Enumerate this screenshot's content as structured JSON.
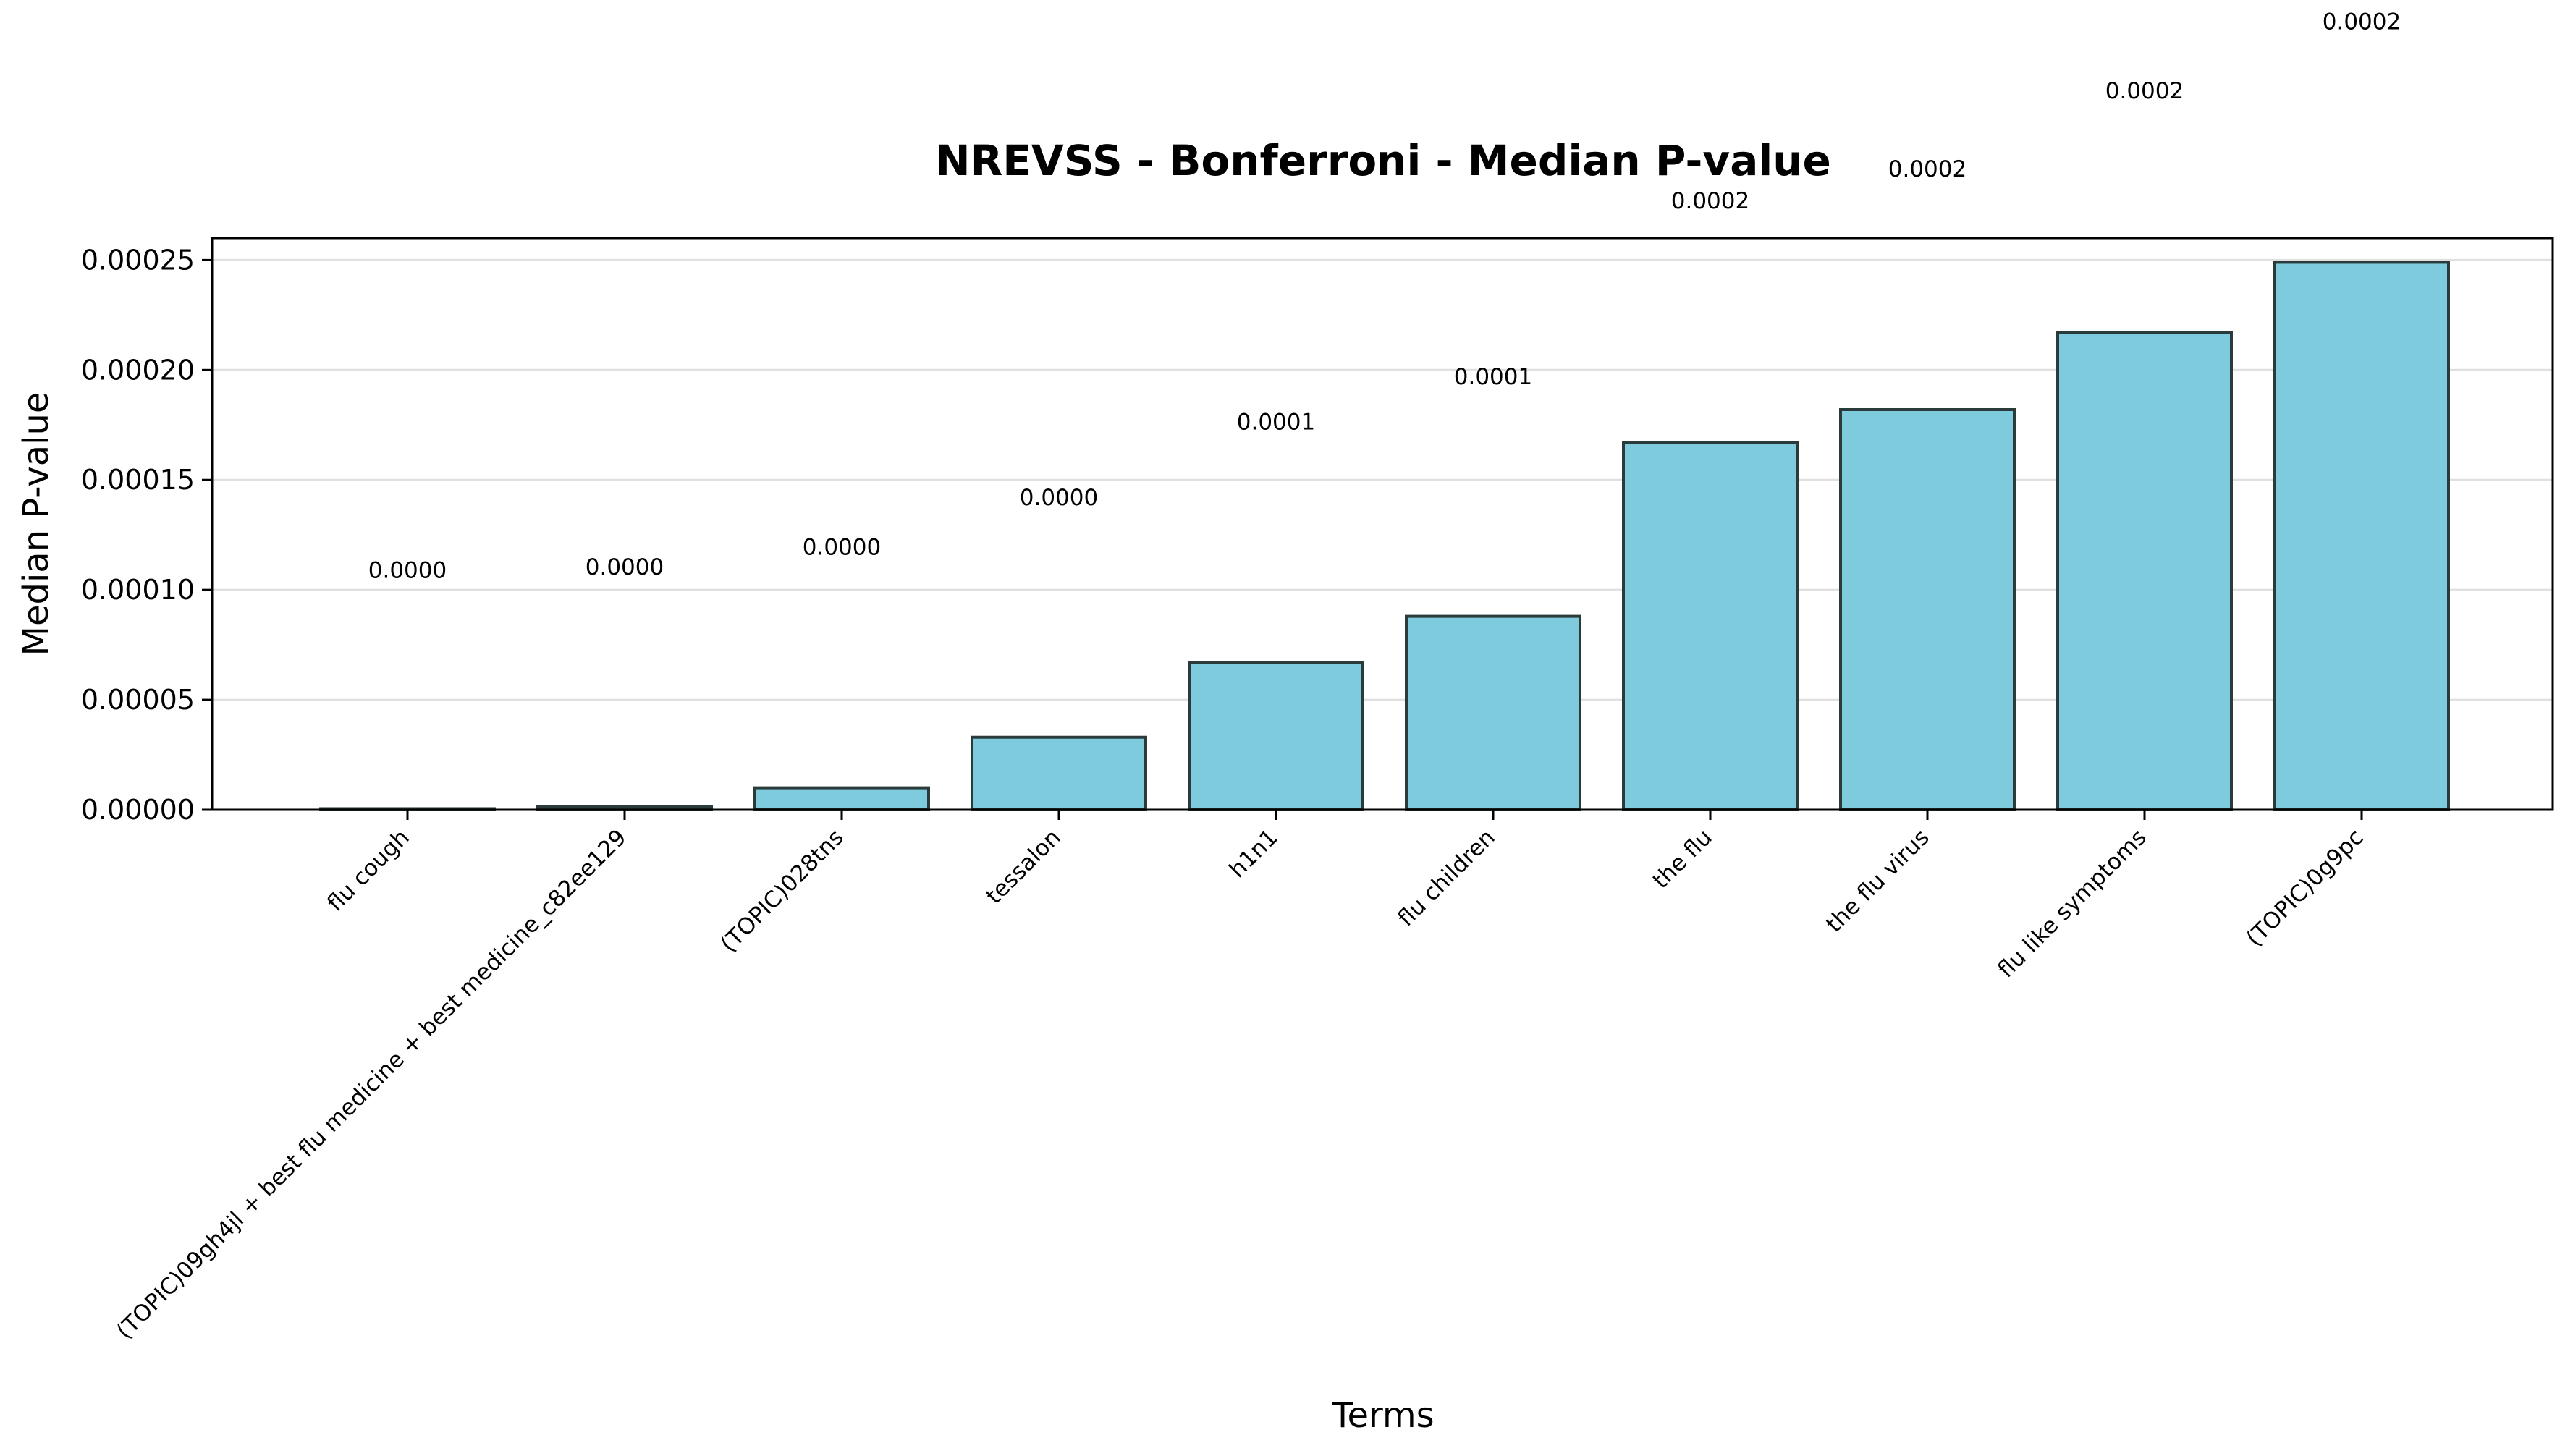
{
  "chart_data": {
    "type": "bar",
    "title": "NREVSS - Bonferroni - Median P-value",
    "xlabel": "Terms",
    "ylabel": "Median P-value",
    "ylim": [
      0,
      0.00026
    ],
    "yticks": [
      0,
      5e-05,
      0.0001,
      0.00015,
      0.0002,
      0.00025
    ],
    "ytick_labels": [
      "0.00000",
      "0.00005",
      "0.00010",
      "0.00015",
      "0.00020",
      "0.00025"
    ],
    "grid": "y",
    "bar_color": "#7ecbdd",
    "edge_color": "#2b3a3a",
    "categories": [
      "flu cough",
      "(TOPIC)09gh4jl + best flu medicine + best medicine_c82ee129",
      "(TOPIC)028tns",
      "tessalon",
      "h1n1",
      "flu children",
      "the flu",
      "the flu virus",
      "flu like symptoms",
      "(TOPIC)0g9pc"
    ],
    "values": [
      5e-07,
      1.5e-06,
      1e-05,
      3.3e-05,
      6.7e-05,
      8.8e-05,
      0.000167,
      0.000182,
      0.000217,
      0.000249
    ],
    "data_labels": [
      "0.0000",
      "0.0000",
      "0.0000",
      "0.0000",
      "0.0001",
      "0.0001",
      "0.0002",
      "0.0002",
      "0.0002",
      "0.0002"
    ],
    "label_values": [
      0.0001055,
      0.000107,
      0.000116,
      0.0001385,
      0.000173,
      0.0001935,
      0.0002735,
      0.000288,
      0.0003235,
      0.000355
    ]
  }
}
